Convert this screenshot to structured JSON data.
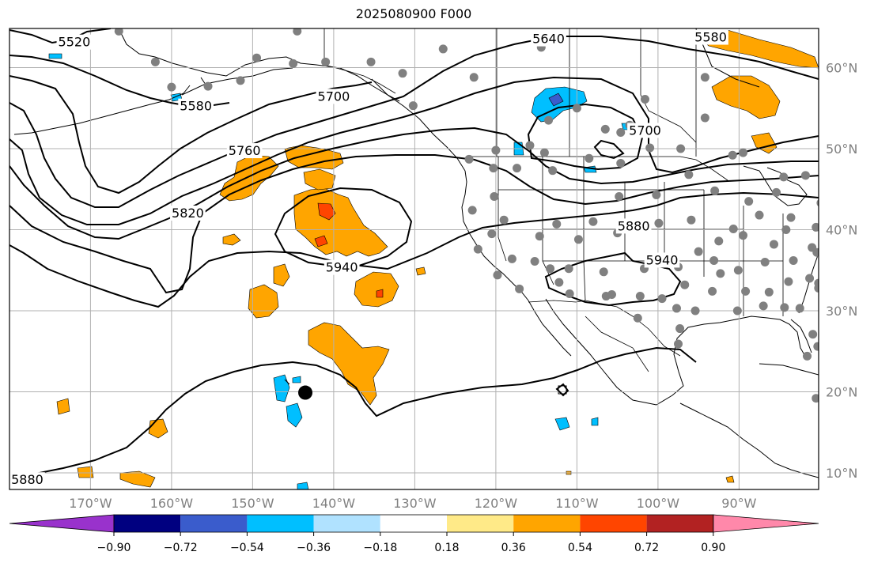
{
  "title": "2025080900 F000",
  "map": {
    "lon_min": -180,
    "lon_max": -80,
    "lat_min": 8,
    "lat_max": 65,
    "lon_ticks": [
      {
        "value": -170,
        "label": "170°W"
      },
      {
        "value": -160,
        "label": "160°W"
      },
      {
        "value": -150,
        "label": "150°W"
      },
      {
        "value": -140,
        "label": "140°W"
      },
      {
        "value": -130,
        "label": "130°W"
      },
      {
        "value": -120,
        "label": "120°W"
      },
      {
        "value": -110,
        "label": "110°W"
      },
      {
        "value": -100,
        "label": "100°W"
      },
      {
        "value": -90,
        "label": "90°W"
      }
    ],
    "lat_ticks": [
      {
        "value": 10,
        "label": "10°N"
      },
      {
        "value": 20,
        "label": "20°N"
      },
      {
        "value": 30,
        "label": "30°N"
      },
      {
        "value": 40,
        "label": "40°N"
      },
      {
        "value": 50,
        "label": "50°N"
      },
      {
        "value": 60,
        "label": "60°N"
      }
    ],
    "grid": true,
    "contour_labels": [
      {
        "text": "5520",
        "lon": -172,
        "lat": 63.2
      },
      {
        "text": "5580",
        "lon": -157,
        "lat": 55.3
      },
      {
        "text": "5640",
        "lon": -113.5,
        "lat": 63.6
      },
      {
        "text": "5580",
        "lon": -93.5,
        "lat": 63.8
      },
      {
        "text": "5700",
        "lon": -140,
        "lat": 56.5
      },
      {
        "text": "5760",
        "lon": -151,
        "lat": 49.8
      },
      {
        "text": "5820",
        "lon": -158,
        "lat": 42.1
      },
      {
        "text": "5940",
        "lon": -139,
        "lat": 35.4
      },
      {
        "text": "5880",
        "lon": -103,
        "lat": 40.5
      },
      {
        "text": "5940",
        "lon": -99.5,
        "lat": 36.3
      },
      {
        "text": "5700",
        "lon": -101.6,
        "lat": 52.3
      },
      {
        "text": "5880",
        "lon": -177.8,
        "lat": 9.2
      }
    ],
    "marker": {
      "lon": -143.5,
      "lat": 19.9,
      "color": "#000000"
    },
    "station_color": "#808080",
    "stations": [
      [
        -166.5,
        64.5
      ],
      [
        -162,
        60.7
      ],
      [
        -160,
        57.6
      ],
      [
        -155.5,
        57.7
      ],
      [
        -151.5,
        58.4
      ],
      [
        -149.5,
        61.2
      ],
      [
        -144.5,
        64.5
      ],
      [
        -145,
        60.5
      ],
      [
        -141,
        60.7
      ],
      [
        -135.4,
        60.7
      ],
      [
        -131.5,
        59.3
      ],
      [
        -130.2,
        55.3
      ],
      [
        -126.5,
        62.3
      ],
      [
        -122.7,
        58.8
      ],
      [
        -114.4,
        62.5
      ],
      [
        -113.5,
        53.5
      ],
      [
        -110,
        55
      ],
      [
        -106.5,
        52.4
      ],
      [
        -104.6,
        52
      ],
      [
        -103.5,
        52.9
      ],
      [
        -101.6,
        56.1
      ],
      [
        -94.2,
        58.8
      ],
      [
        -89.5,
        49.5
      ],
      [
        -94.2,
        53.8
      ],
      [
        -97.2,
        50
      ],
      [
        -101,
        50.1
      ],
      [
        -104.6,
        48.2
      ],
      [
        -108.5,
        48.8
      ],
      [
        -113,
        47.3
      ],
      [
        -115.8,
        50.4
      ],
      [
        -117.4,
        47.6
      ],
      [
        -120,
        49.8
      ],
      [
        -123.3,
        48.7
      ],
      [
        -120.3,
        47.6
      ],
      [
        -114,
        49.5
      ],
      [
        -120.2,
        44.1
      ],
      [
        -122.9,
        42.4
      ],
      [
        -119,
        41.2
      ],
      [
        -112.5,
        40.7
      ],
      [
        -108,
        41
      ],
      [
        -104.8,
        44.1
      ],
      [
        -100.2,
        44.3
      ],
      [
        -96.2,
        46.8
      ],
      [
        -93,
        44.8
      ],
      [
        -90.8,
        49.2
      ],
      [
        -88.8,
        43.5
      ],
      [
        -85.4,
        44.6
      ],
      [
        -84.5,
        46.5
      ],
      [
        -81.8,
        46.7
      ],
      [
        -79.9,
        43.3
      ],
      [
        -83.6,
        41.5
      ],
      [
        -87.5,
        41.8
      ],
      [
        -90.7,
        40.1
      ],
      [
        -95.9,
        41.2
      ],
      [
        -99.9,
        40.8
      ],
      [
        -105,
        39.6
      ],
      [
        -109.8,
        38.8
      ],
      [
        -114.6,
        39.2
      ],
      [
        -120.5,
        39.5
      ],
      [
        -122.2,
        37.6
      ],
      [
        -118,
        36.4
      ],
      [
        -115.2,
        36.1
      ],
      [
        -111,
        35.2
      ],
      [
        -106.7,
        34.8
      ],
      [
        -101.7,
        35.2
      ],
      [
        -97.5,
        35.4
      ],
      [
        -95,
        37.3
      ],
      [
        -92.5,
        38.6
      ],
      [
        -89.5,
        39.3
      ],
      [
        -85.7,
        38.2
      ],
      [
        -84.2,
        40
      ],
      [
        -80.5,
        40.3
      ],
      [
        -81,
        37.8
      ],
      [
        -83.3,
        36.2
      ],
      [
        -86.8,
        36
      ],
      [
        -90.1,
        35
      ],
      [
        -93.1,
        36.2
      ],
      [
        -96.7,
        33.2
      ],
      [
        -92.3,
        34.6
      ],
      [
        -89.2,
        32.4
      ],
      [
        -86.3,
        32.3
      ],
      [
        -83.9,
        33.6
      ],
      [
        -81.3,
        34
      ],
      [
        -80.2,
        32.8
      ],
      [
        -82.5,
        30.3
      ],
      [
        -84.4,
        30.4
      ],
      [
        -87,
        30.6
      ],
      [
        -90.2,
        30
      ],
      [
        -93.3,
        32.4
      ],
      [
        -95.4,
        30
      ],
      [
        -97.7,
        30.3
      ],
      [
        -99.5,
        31.5
      ],
      [
        -102.2,
        31.8
      ],
      [
        -106.4,
        31.8
      ],
      [
        -110.9,
        32.1
      ],
      [
        -112.2,
        33.5
      ],
      [
        -117.1,
        32.7
      ],
      [
        -119.8,
        34.4
      ],
      [
        -113.3,
        35.2
      ],
      [
        -105.7,
        32
      ],
      [
        -102.5,
        29.1
      ],
      [
        -97.3,
        27.8
      ],
      [
        -97.5,
        25.9
      ],
      [
        -80.9,
        27.1
      ],
      [
        -80.3,
        25.6
      ],
      [
        -81.6,
        24.4
      ],
      [
        -80.2,
        33.4
      ],
      [
        -80.4,
        37.2
      ],
      [
        -80.5,
        19.2
      ]
    ]
  },
  "colorbar": {
    "ticks": [
      "−0.90",
      "−0.72",
      "−0.54",
      "−0.36",
      "−0.18",
      "0.18",
      "0.36",
      "0.54",
      "0.72",
      "0.90"
    ],
    "under_color": "#9932cc",
    "over_color": "#ff88aa",
    "colors": [
      "#000080",
      "#3a5ccc",
      "#00bfff",
      "#b0e2ff",
      "#ffffff",
      "#ffea88",
      "#ffa500",
      "#ff4500",
      "#b22222"
    ]
  }
}
